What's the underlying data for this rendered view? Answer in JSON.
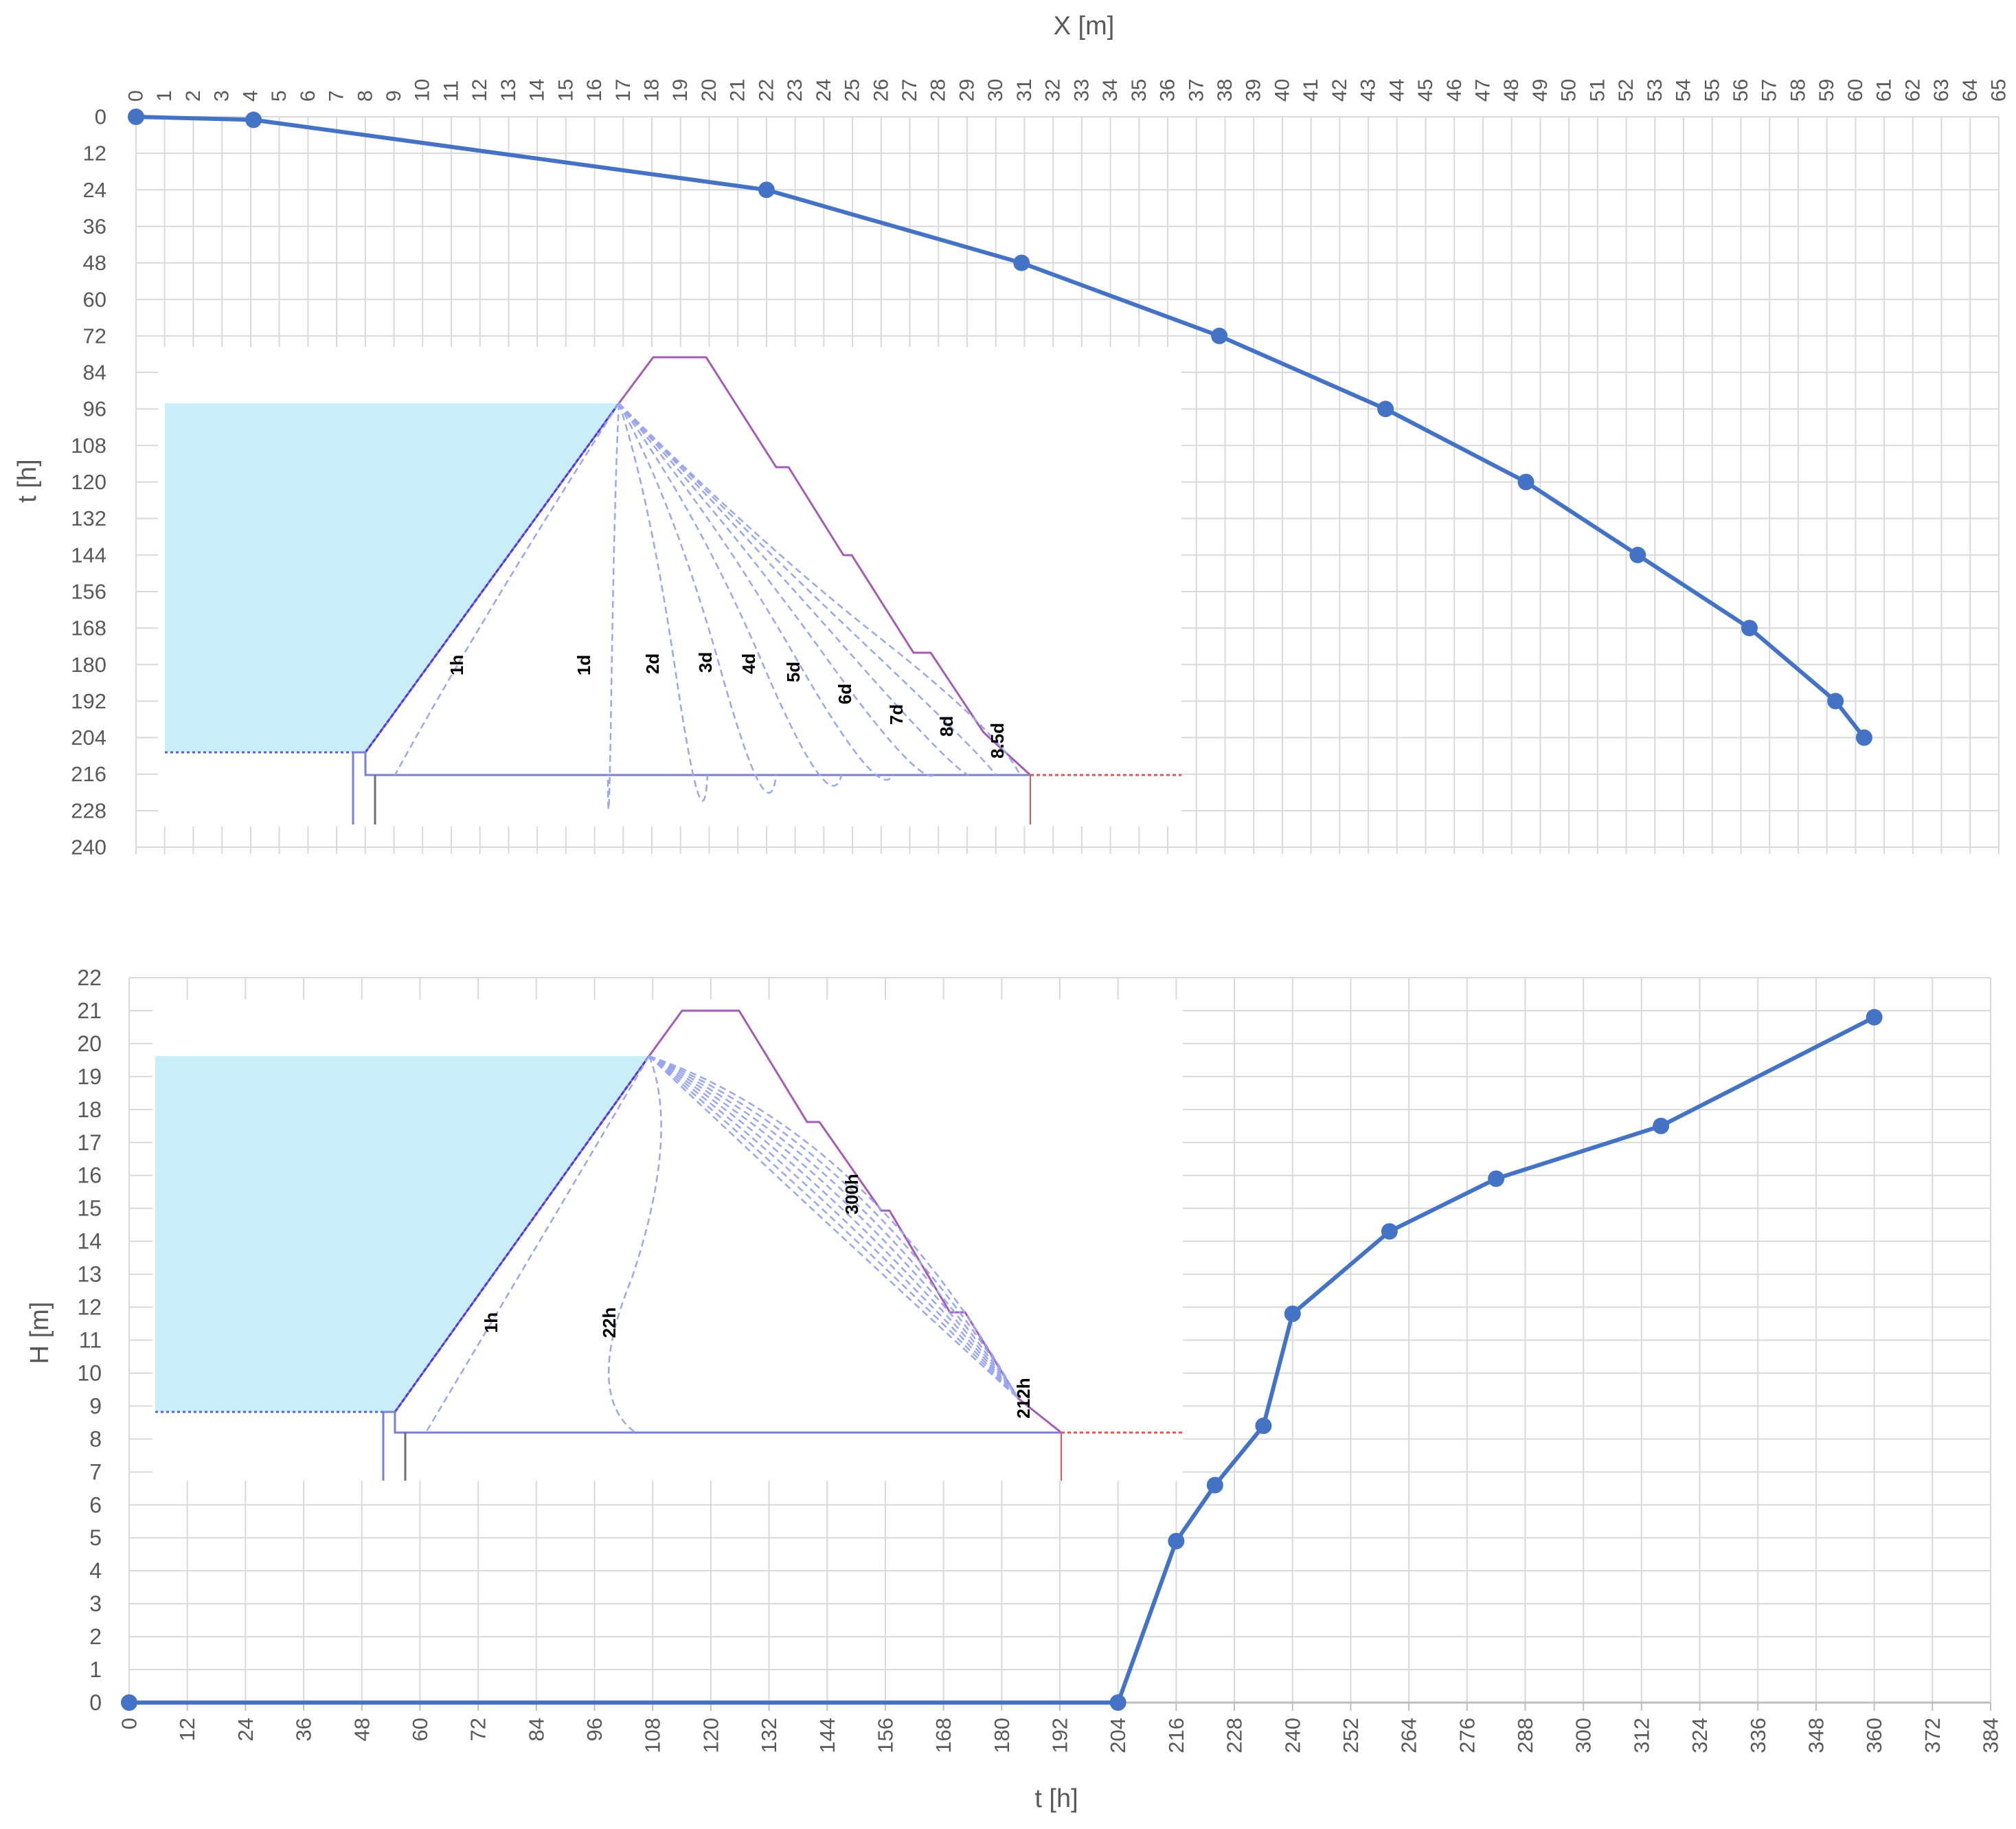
{
  "figure": {
    "colors": {
      "series": "#4472C4",
      "grid": "#d9d9d9",
      "axis_text": "#595959",
      "reservoir": "#c9eef9",
      "dam_outline": "#a35db3",
      "seepage": "#9aa7ee",
      "base_line": "#7b7fcf",
      "downstream_line": "#e05555",
      "foundation": "#707070"
    }
  },
  "chart_data": [
    {
      "type": "line",
      "xlabel": "X [m]",
      "ylabel": "t [h]",
      "x_axis_position": "top",
      "y_axis_inverted": true,
      "xlim": [
        0,
        65
      ],
      "ylim": [
        0,
        240
      ],
      "x_ticks": [
        0,
        1,
        2,
        3,
        4,
        5,
        6,
        7,
        8,
        9,
        10,
        11,
        12,
        13,
        14,
        15,
        16,
        17,
        18,
        19,
        20,
        21,
        22,
        23,
        24,
        25,
        26,
        27,
        28,
        29,
        30,
        31,
        32,
        33,
        34,
        35,
        36,
        37,
        38,
        39,
        40,
        41,
        42,
        43,
        44,
        45,
        46,
        47,
        48,
        49,
        50,
        51,
        52,
        53,
        54,
        55,
        56,
        57,
        58,
        59,
        60,
        61,
        62,
        63,
        64,
        65
      ],
      "y_ticks": [
        0,
        12,
        24,
        36,
        48,
        60,
        72,
        84,
        96,
        108,
        120,
        132,
        144,
        156,
        168,
        180,
        192,
        204,
        216,
        228,
        240
      ],
      "grid": true,
      "series": [
        {
          "x": [
            0,
            4.1,
            22,
            30.9,
            37.8,
            43.6,
            48.5,
            52.4,
            56.3,
            59.3,
            60.3
          ],
          "y": [
            0,
            1,
            24,
            48,
            72,
            96,
            120,
            144,
            168,
            192,
            204
          ]
        }
      ],
      "inset": {
        "labels": [
          "1h",
          "1d",
          "2d",
          "3d",
          "4d",
          "5d",
          "6d",
          "7d",
          "8d",
          "8.5d"
        ]
      }
    },
    {
      "type": "line",
      "xlabel": "t [h]",
      "ylabel": "H [m]",
      "xlim": [
        0,
        384
      ],
      "ylim": [
        0,
        22
      ],
      "x_ticks": [
        0,
        12,
        24,
        36,
        48,
        60,
        72,
        84,
        96,
        108,
        120,
        132,
        144,
        156,
        168,
        180,
        192,
        204,
        216,
        228,
        240,
        252,
        264,
        276,
        288,
        300,
        312,
        324,
        336,
        348,
        360,
        372,
        384
      ],
      "y_ticks": [
        0,
        1,
        2,
        3,
        4,
        5,
        6,
        7,
        8,
        9,
        10,
        11,
        12,
        13,
        14,
        15,
        16,
        17,
        18,
        19,
        20,
        21,
        22
      ],
      "grid": true,
      "series": [
        {
          "x": [
            0,
            204,
            216,
            224,
            234,
            240,
            260,
            282,
            316,
            360
          ],
          "y": [
            0,
            0,
            4.9,
            6.6,
            8.4,
            11.8,
            14.3,
            15.9,
            17.5,
            20.8
          ]
        }
      ],
      "inset": {
        "labels": [
          "1h",
          "22h",
          "300h",
          "212h"
        ]
      }
    }
  ]
}
